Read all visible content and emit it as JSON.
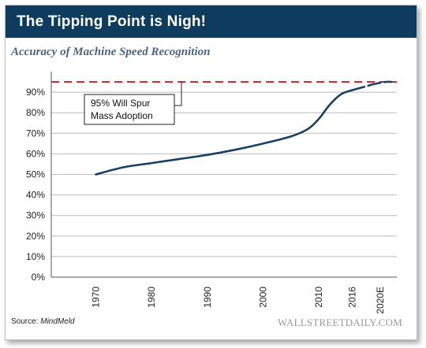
{
  "banner": {
    "title": "The Tipping Point is Nigh!"
  },
  "footer": {
    "source_label": "Source: ",
    "source_name": "MindMeld",
    "brand": "WALLSTREETDAILY.COM"
  },
  "colors": {
    "banner_bg": "#0d3c5e",
    "series_line": "#17415f",
    "threshold_line": "#d8272d",
    "grid": "#bdbdbd"
  },
  "chart_data": {
    "type": "line",
    "title": "Accuracy of Machine Speed Recognition",
    "xlabel": "",
    "ylabel": "",
    "y_ticks": [
      "0%",
      "10%",
      "20%",
      "30%",
      "40%",
      "50%",
      "60%",
      "70%",
      "80%",
      "90%"
    ],
    "ylim": [
      0,
      100
    ],
    "x_ticks": [
      {
        "label": "1970",
        "x": 1970
      },
      {
        "label": "1980",
        "x": 1980
      },
      {
        "label": "1990",
        "x": 1990
      },
      {
        "label": "2000",
        "x": 2000
      },
      {
        "label": "2010",
        "x": 2010
      },
      {
        "label": "2016",
        "x": 2016
      },
      {
        "label": "2020E",
        "x": 2021
      }
    ],
    "xlim": [
      1962,
      2024
    ],
    "grid": true,
    "series": [
      {
        "x": [
          1970,
          1975,
          1980,
          1985,
          1990,
          1995,
          2000,
          2005,
          2008,
          2010,
          2012,
          2014,
          2016
        ],
        "y": [
          50,
          53.5,
          55.5,
          57.5,
          59.5,
          62,
          65,
          68.5,
          72,
          77,
          84,
          89,
          91
        ],
        "style": "solid"
      },
      {
        "x": [
          2016,
          2018,
          2020,
          2022,
          2023
        ],
        "y": [
          91,
          92.5,
          94,
          95,
          95
        ],
        "style": "dashed"
      }
    ],
    "threshold": {
      "y": 95,
      "label_line1": "95% Will Spur",
      "label_line2": "Mass Adoption"
    }
  }
}
